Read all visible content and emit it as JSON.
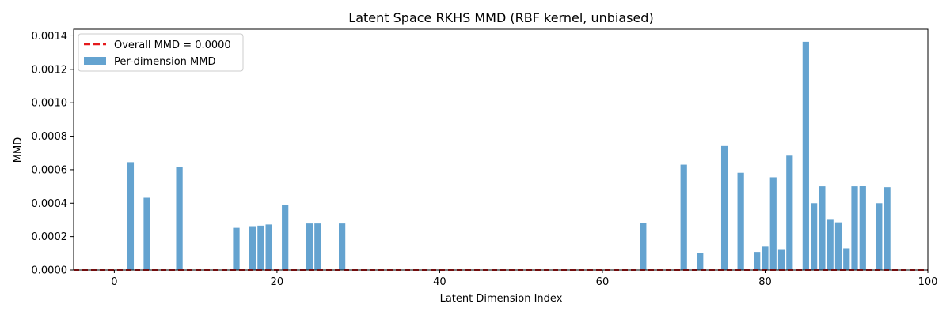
{
  "chart_data": {
    "type": "bar",
    "title": "Latent Space RKHS MMD (RBF kernel, unbiased)",
    "xlabel": "Latent Dimension Index",
    "ylabel": "MMD",
    "xlim": [
      -5,
      100
    ],
    "ylim": [
      0,
      0.00144
    ],
    "xticks": [
      0,
      20,
      40,
      60,
      80,
      100
    ],
    "xtick_labels": [
      "0",
      "20",
      "40",
      "60",
      "80",
      "100"
    ],
    "yticks": [
      0,
      0.0002,
      0.0004,
      0.0006,
      0.0008,
      0.001,
      0.0012,
      0.0014
    ],
    "ytick_labels": [
      "0.0000",
      "0.0002",
      "0.0004",
      "0.0006",
      "0.0008",
      "0.0010",
      "0.0012",
      "0.0014"
    ],
    "grid": false,
    "legend_position": "top-left",
    "bar_color": "#4f96c9",
    "bar_opacity": 0.88,
    "line_color": "#e41a1c",
    "series": [
      {
        "name": "Per-dimension MMD",
        "type": "bar",
        "bar_width": 0.8,
        "x": [
          2,
          4,
          8,
          15,
          17,
          18,
          19,
          21,
          24,
          25,
          28,
          65,
          70,
          72,
          75,
          77,
          79,
          80,
          81,
          82,
          83,
          85,
          86,
          87,
          88,
          89,
          90,
          91,
          92,
          94,
          95
        ],
        "values": [
          0.000645,
          0.000432,
          0.000615,
          0.000252,
          0.000262,
          0.000265,
          0.000272,
          0.000388,
          0.000278,
          0.000278,
          0.000278,
          0.000282,
          0.00063,
          0.000102,
          0.000742,
          0.000582,
          0.000108,
          0.00014,
          0.000555,
          0.000125,
          0.000688,
          0.001365,
          0.0004,
          0.0005,
          0.000305,
          0.000285,
          0.00013,
          0.0005,
          0.000502,
          0.0004,
          0.000495
        ]
      },
      {
        "name": "Overall MMD = 0.0000",
        "type": "hline",
        "style": "dashed",
        "value": 0.0
      }
    ]
  }
}
